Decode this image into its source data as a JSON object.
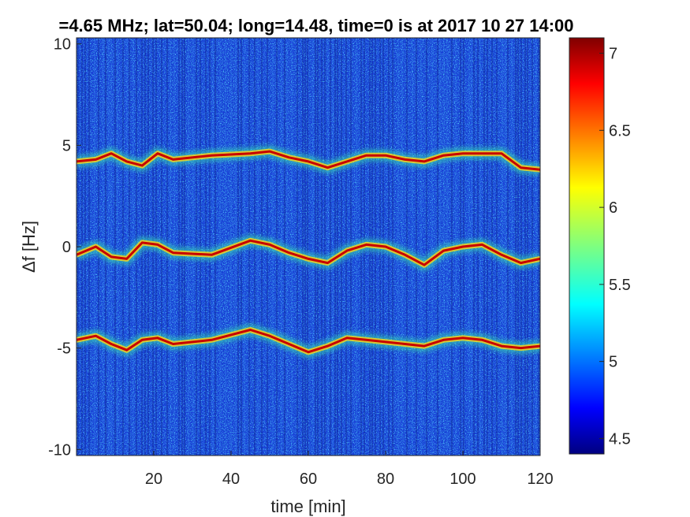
{
  "chart_data": {
    "type": "heatmap",
    "title": "=4.65 MHz;  lat=50.04; long=14.48, time=0 is at 2017 10 27 14:00",
    "xlabel": "time [min]",
    "ylabel": "Δf [Hz]",
    "xlim": [
      0,
      120
    ],
    "ylim": [
      -10.3,
      10.3
    ],
    "xticks": [
      20,
      40,
      60,
      80,
      100,
      120
    ],
    "xtick_labels": [
      "20",
      "40",
      "60",
      "80",
      "100",
      "120"
    ],
    "yticks": [
      10,
      5,
      0,
      -5,
      -10
    ],
    "ytick_labels": [
      "10",
      "5",
      "0",
      "-5",
      "-10"
    ],
    "colorbar": {
      "range": [
        4.4,
        7.1
      ],
      "ticks": [
        7,
        6.5,
        6,
        5.5,
        5,
        4.5
      ],
      "tick_labels": [
        "7",
        "6.5",
        "6",
        "5.5",
        "5",
        "4.5"
      ],
      "colormap": "jet"
    },
    "background_level": 5.0,
    "series": [
      {
        "x": [
          0,
          5,
          9,
          13,
          17,
          21,
          25,
          35,
          45,
          50,
          55,
          60,
          65,
          70,
          75,
          80,
          85,
          90,
          95,
          100,
          105,
          110,
          115,
          120
        ],
        "values": [
          4.2,
          4.3,
          4.6,
          4.2,
          4.0,
          4.6,
          4.3,
          4.5,
          4.6,
          4.7,
          4.4,
          4.2,
          3.9,
          4.2,
          4.5,
          4.5,
          4.3,
          4.2,
          4.5,
          4.6,
          4.6,
          4.6,
          3.9,
          3.8
        ]
      },
      {
        "x": [
          0,
          5,
          9,
          13,
          17,
          21,
          25,
          35,
          45,
          50,
          55,
          60,
          65,
          70,
          75,
          80,
          85,
          90,
          95,
          100,
          105,
          110,
          115,
          120
        ],
        "values": [
          -0.4,
          0.0,
          -0.5,
          -0.6,
          0.2,
          0.1,
          -0.3,
          -0.4,
          0.3,
          0.1,
          -0.3,
          -0.6,
          -0.8,
          -0.2,
          0.1,
          0.0,
          -0.4,
          -0.9,
          -0.2,
          0.0,
          0.1,
          -0.4,
          -0.8,
          -0.6
        ]
      },
      {
        "x": [
          0,
          5,
          9,
          13,
          17,
          21,
          25,
          35,
          45,
          50,
          55,
          60,
          65,
          70,
          75,
          80,
          85,
          90,
          95,
          100,
          105,
          110,
          115,
          120
        ],
        "values": [
          -4.6,
          -4.4,
          -4.8,
          -5.1,
          -4.6,
          -4.5,
          -4.8,
          -4.6,
          -4.1,
          -4.4,
          -4.8,
          -5.2,
          -4.9,
          -4.5,
          -4.6,
          -4.7,
          -4.8,
          -4.9,
          -4.6,
          -4.5,
          -4.6,
          -4.9,
          -5.0,
          -4.9
        ]
      }
    ]
  }
}
